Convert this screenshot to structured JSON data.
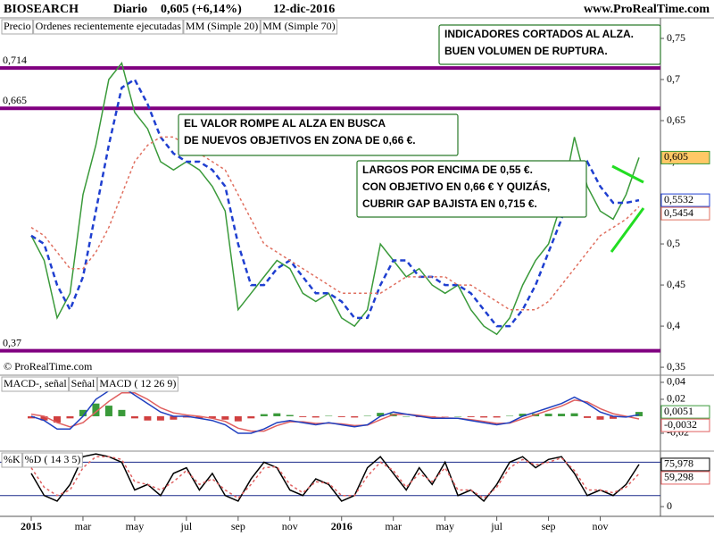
{
  "chart_data": [
    {
      "type": "line",
      "title": "BIOSEARCH",
      "subtitle": "Diario",
      "last_quote": "0,605 (+6,14%)",
      "date": "12-dic-2016",
      "source": "www.ProRealTime.com",
      "copyright": "© ProRealTime.com",
      "orders_label": "Ordenes recientemente ejecutadas",
      "ylim": [
        0.349,
        0.775
      ],
      "yticks": [
        {
          "value": 0.35,
          "label": "0,35"
        },
        {
          "value": 0.4,
          "label": "0,4"
        },
        {
          "value": 0.45,
          "label": "0,45"
        },
        {
          "value": 0.5,
          "label": "0,5"
        },
        {
          "value": 0.55,
          "label": "0,55"
        },
        {
          "value": 0.6,
          "label": "0,6"
        },
        {
          "value": 0.65,
          "label": "0,65"
        },
        {
          "value": 0.7,
          "label": "0,7"
        },
        {
          "value": 0.75,
          "label": "0,75"
        }
      ],
      "levels": [
        {
          "value": 0.714,
          "label": "0,714"
        },
        {
          "value": 0.665,
          "label": "0,665"
        },
        {
          "value": 0.37,
          "label": "0,37"
        }
      ],
      "level_color": "#800080",
      "series": [
        {
          "name": "Precio",
          "color": "#3a9a3a",
          "last_label": "0,605",
          "label_fill": "#ffc866",
          "values": [
            0.51,
            0.48,
            0.41,
            0.44,
            0.56,
            0.62,
            0.7,
            0.72,
            0.66,
            0.64,
            0.6,
            0.59,
            0.6,
            0.59,
            0.57,
            0.54,
            0.42,
            0.44,
            0.46,
            0.48,
            0.47,
            0.44,
            0.43,
            0.44,
            0.41,
            0.4,
            0.42,
            0.5,
            0.48,
            0.46,
            0.47,
            0.45,
            0.44,
            0.45,
            0.42,
            0.4,
            0.39,
            0.41,
            0.45,
            0.48,
            0.5,
            0.55,
            0.63,
            0.57,
            0.54,
            0.53,
            0.56,
            0.605
          ]
        },
        {
          "name": "MM (Simple 20)",
          "color": "#1f3fd0",
          "dashed": true,
          "last_label": "0,5532",
          "values": [
            0.51,
            0.5,
            0.45,
            0.42,
            0.46,
            0.54,
            0.62,
            0.69,
            0.7,
            0.67,
            0.63,
            0.61,
            0.6,
            0.6,
            0.59,
            0.57,
            0.5,
            0.45,
            0.45,
            0.47,
            0.48,
            0.46,
            0.44,
            0.44,
            0.43,
            0.41,
            0.41,
            0.45,
            0.48,
            0.48,
            0.46,
            0.46,
            0.45,
            0.45,
            0.44,
            0.42,
            0.4,
            0.4,
            0.42,
            0.45,
            0.49,
            0.53,
            0.58,
            0.6,
            0.57,
            0.55,
            0.55,
            0.5532
          ]
        },
        {
          "name": "MM (Simple 70)",
          "color": "#e07060",
          "dashed": true,
          "last_label": "0,5454",
          "values": [
            0.52,
            0.51,
            0.49,
            0.47,
            0.47,
            0.49,
            0.52,
            0.56,
            0.6,
            0.62,
            0.63,
            0.63,
            0.62,
            0.61,
            0.6,
            0.59,
            0.56,
            0.53,
            0.5,
            0.49,
            0.48,
            0.47,
            0.46,
            0.45,
            0.44,
            0.44,
            0.44,
            0.44,
            0.45,
            0.46,
            0.46,
            0.46,
            0.46,
            0.45,
            0.45,
            0.44,
            0.43,
            0.42,
            0.42,
            0.42,
            0.43,
            0.45,
            0.47,
            0.49,
            0.51,
            0.52,
            0.53,
            0.5454
          ]
        }
      ],
      "annotations": [
        {
          "lines": [
            "INDICADORES CORTADOS AL ALZA.",
            "BUEN VOLUMEN DE RUPTURA."
          ]
        },
        {
          "lines": [
            "EL VALOR ROMPE AL ALZA EN BUSCA",
            "DE NUEVOS OBJETIVOS EN ZONA DE 0,66 €."
          ]
        },
        {
          "lines": [
            "LARGOS POR ENCIMA DE 0,55 €.",
            "CON OBJETIVO EN 0,66 € Y QUIZÁS,",
            "CUBRIR GAP BAJISTA EN 0,715 €."
          ]
        }
      ]
    },
    {
      "type": "line",
      "ylim": [
        -0.0411,
        0.0484
      ],
      "yticks": [
        {
          "value": 0.04,
          "label": "0,04"
        },
        {
          "value": 0.02,
          "label": "0,02"
        },
        0,
        {
          "value": -0.02,
          "label": "-0,02"
        }
      ],
      "series": [
        {
          "name": "MACD-, señal",
          "color": "#3a9a3a",
          "kind": "bar",
          "last_label": "0,0051",
          "values": [
            -0.0025,
            -0.005,
            -0.0075,
            -0.0025,
            0.0075,
            0.015,
            0.0125,
            0.0075,
            -0.0025,
            -0.005,
            -0.005,
            -0.004,
            -0.0015,
            -0.0025,
            -0.0025,
            -0.004,
            -0.006,
            -0.0025,
            0.0025,
            0.0035,
            0.0015,
            -0.001,
            -0.0015,
            0.0005,
            -0.001,
            -0.0015,
            0.0005,
            0.004,
            0.003,
            0,
            -0.001,
            -0.0015,
            -0.0005,
            0,
            -0.001,
            -0.0015,
            -0.0015,
            0.0005,
            0.003,
            0.003,
            0.003,
            0.003,
            0.0035,
            -0.002,
            -0.004,
            -0.003,
            -0.001,
            0.0051
          ]
        },
        {
          "name": "Señal",
          "color": "#e06060",
          "last_label": "-0,0032",
          "values": [
            0.0025,
            0,
            -0.0075,
            -0.0125,
            -0.0075,
            0.005,
            0.0175,
            0.0275,
            0.0275,
            0.02,
            0.01,
            0.004,
            0.0015,
            0,
            -0.0025,
            -0.006,
            -0.014,
            -0.0175,
            -0.0175,
            -0.011,
            -0.0065,
            -0.0065,
            -0.0085,
            -0.008,
            -0.009,
            -0.011,
            -0.0105,
            -0.004,
            0.002,
            0.0025,
            0.001,
            -0.001,
            -0.002,
            -0.0025,
            -0.004,
            -0.006,
            -0.0085,
            -0.008,
            -0.003,
            0.002,
            0.007,
            0.012,
            0.019,
            0.017,
            0.009,
            0.003,
            0,
            -0.0032
          ]
        },
        {
          "name": "MACD ( 12 26 9)",
          "color": "#2040c0",
          "values": [
            0,
            -0.005,
            -0.015,
            -0.015,
            0,
            0.02,
            0.03,
            0.035,
            0.025,
            0.015,
            0.005,
            0,
            0,
            -0.0025,
            -0.005,
            -0.01,
            -0.02,
            -0.02,
            -0.015,
            -0.0075,
            -0.005,
            -0.0075,
            -0.01,
            -0.0075,
            -0.01,
            -0.0125,
            -0.01,
            0,
            0.005,
            0.0025,
            0,
            -0.0025,
            -0.0025,
            -0.0025,
            -0.005,
            -0.0075,
            -0.01,
            -0.0075,
            0,
            0.005,
            0.01,
            0.015,
            0.0225,
            0.015,
            0.005,
            0,
            -0.001,
            0.0019
          ]
        }
      ]
    },
    {
      "type": "line",
      "ylim": [
        -17.5,
        100
      ],
      "yticks": [
        0
      ],
      "levels": [
        20,
        80
      ],
      "level_color": "#1a2a8a",
      "categories": [
        "2015",
        null,
        null,
        null,
        "mar",
        null,
        null,
        null,
        "may",
        null,
        null,
        null,
        "jul",
        null,
        null,
        null,
        "sep",
        null,
        null,
        null,
        "nov",
        null,
        null,
        null,
        "2016",
        null,
        null,
        null,
        "mar",
        null,
        null,
        null,
        "may",
        null,
        null,
        null,
        "jul",
        null,
        null,
        null,
        "sep",
        null,
        null,
        null,
        "nov",
        null,
        null,
        null
      ],
      "series": [
        {
          "name": "%K",
          "color": "#000000",
          "last_label": "75,978",
          "values": [
            60,
            20,
            10,
            40,
            90,
            95,
            90,
            80,
            30,
            40,
            20,
            60,
            70,
            30,
            60,
            20,
            10,
            50,
            80,
            70,
            30,
            20,
            50,
            40,
            10,
            20,
            70,
            90,
            60,
            30,
            70,
            40,
            80,
            20,
            30,
            10,
            40,
            80,
            90,
            70,
            85,
            90,
            60,
            20,
            30,
            20,
            40,
            75.978
          ]
        },
        {
          "name": "%D ( 14 3 5)",
          "color": "#e06060",
          "dashed": true,
          "last_label": "59,298",
          "values": [
            70,
            35,
            20,
            30,
            70,
            90,
            90,
            85,
            45,
            40,
            30,
            45,
            65,
            40,
            50,
            30,
            15,
            40,
            70,
            72,
            40,
            25,
            45,
            42,
            20,
            20,
            55,
            80,
            65,
            35,
            60,
            45,
            70,
            30,
            30,
            15,
            35,
            70,
            85,
            75,
            80,
            88,
            65,
            30,
            30,
            25,
            35,
            59.298
          ]
        }
      ]
    }
  ]
}
